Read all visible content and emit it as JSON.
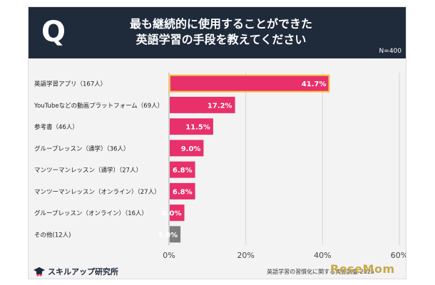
{
  "header": {
    "q_label": "Q",
    "title_line1": "最も継続的に使用することができた",
    "title_line2": "英語学習の手段を教えてください",
    "n_label": "N=400"
  },
  "chart_data": {
    "type": "bar",
    "orientation": "horizontal",
    "title": "最も継続的に使用することができた英語学習の手段を教えてください",
    "categories": [
      "英語学習アプリ（167人）",
      "YouTubeなどの動画プラットフォーム（69人）",
      "参考書（46人）",
      "グループレッスン（通学）（36人）",
      "マンツーマンレッスン（通学）（27人）",
      "マンツーマンレッスン（オンライン）（27人）",
      "グループレッスン（オンライン）（16人）",
      "その他(12人)"
    ],
    "values": [
      41.7,
      17.2,
      11.5,
      9.0,
      6.8,
      6.8,
      4.0,
      3.0
    ],
    "value_labels": [
      "41.7%",
      "17.2%",
      "11.5%",
      "9.0%",
      "6.8%",
      "6.8%",
      "4.0%",
      "3.0%"
    ],
    "xlim": [
      0,
      60
    ],
    "x_ticks": [
      0,
      20,
      40,
      60
    ],
    "x_tick_labels": [
      "0%",
      "20%",
      "40%",
      "60%"
    ],
    "grid": true,
    "colors": {
      "bar": "#e8306b",
      "other": "#7d7d7d",
      "highlight": "#f6c544",
      "grid": "#d5d5d5"
    }
  },
  "footer": {
    "logo_text": "スキルアップ研究所",
    "source": "英語学習の習慣化に関する実態調査 2025",
    "watermark": "ReseMom"
  }
}
